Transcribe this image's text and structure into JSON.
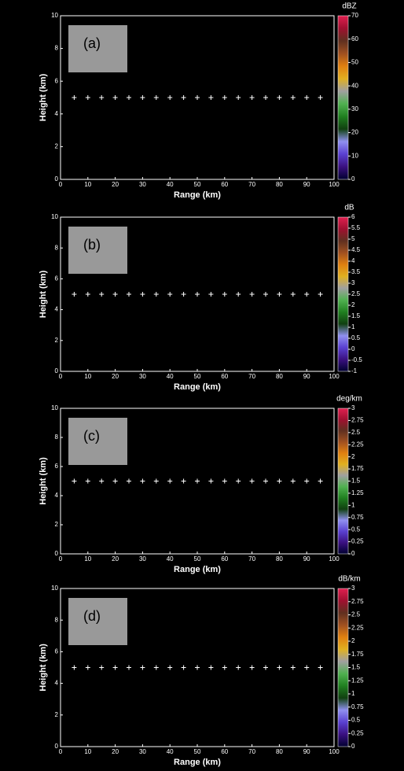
{
  "chart_data": [
    {
      "type": "heatmap",
      "label": "(a)",
      "xlabel": "Range (km)",
      "ylabel": "Height (km)",
      "xlim": [
        0,
        100
      ],
      "xticks": [
        0,
        10,
        20,
        30,
        40,
        50,
        60,
        70,
        80,
        90,
        100
      ],
      "ylim": [
        0,
        10
      ],
      "yticks": [
        0,
        2,
        4,
        6,
        8,
        10
      ],
      "colorbar_label": "dBZ",
      "clim": [
        0,
        70
      ],
      "cticks": [
        0,
        10,
        20,
        30,
        40,
        50,
        60,
        70
      ],
      "reference_height": 5,
      "reference_ranges": [
        5,
        10,
        15,
        20,
        25,
        30,
        35,
        40,
        45,
        50,
        55,
        60,
        65,
        70,
        75,
        80,
        85,
        90,
        95
      ]
    },
    {
      "type": "heatmap",
      "label": "(b)",
      "xlabel": "Range (km)",
      "ylabel": "Height (km)",
      "xlim": [
        0,
        100
      ],
      "xticks": [
        0,
        10,
        20,
        30,
        40,
        50,
        60,
        70,
        80,
        90,
        100
      ],
      "ylim": [
        0,
        10
      ],
      "yticks": [
        0,
        2,
        4,
        6,
        8,
        10
      ],
      "colorbar_label": "dB",
      "clim": [
        -1,
        6
      ],
      "cticks": [
        -1,
        -0.5,
        0,
        0.5,
        1,
        1.5,
        2,
        2.5,
        3,
        3.5,
        4,
        4.5,
        5,
        5.5,
        6
      ],
      "reference_height": 5,
      "reference_ranges": [
        5,
        10,
        15,
        20,
        25,
        30,
        35,
        40,
        45,
        50,
        55,
        60,
        65,
        70,
        75,
        80,
        85,
        90,
        95
      ]
    },
    {
      "type": "heatmap",
      "label": "(c)",
      "xlabel": "Range (km)",
      "ylabel": "Height (km)",
      "xlim": [
        0,
        100
      ],
      "xticks": [
        0,
        10,
        20,
        30,
        40,
        50,
        60,
        70,
        80,
        90,
        100
      ],
      "ylim": [
        0,
        10
      ],
      "yticks": [
        0,
        2,
        4,
        6,
        8,
        10
      ],
      "colorbar_label": "deg/km",
      "clim": [
        0,
        3
      ],
      "cticks": [
        0,
        0.25,
        0.5,
        0.75,
        1,
        1.25,
        1.5,
        1.75,
        2,
        2.25,
        2.5,
        2.75,
        3
      ],
      "reference_height": 5,
      "reference_ranges": [
        5,
        10,
        15,
        20,
        25,
        30,
        35,
        40,
        45,
        50,
        55,
        60,
        65,
        70,
        75,
        80,
        85,
        90,
        95
      ]
    },
    {
      "type": "heatmap",
      "label": "(d)",
      "xlabel": "Range (km)",
      "ylabel": "Height (km)",
      "xlim": [
        0,
        100
      ],
      "xticks": [
        0,
        10,
        20,
        30,
        40,
        50,
        60,
        70,
        80,
        90,
        100
      ],
      "ylim": [
        0,
        10
      ],
      "yticks": [
        0,
        2,
        4,
        6,
        8,
        10
      ],
      "colorbar_label": "dB/km",
      "clim": [
        0,
        3
      ],
      "cticks": [
        0,
        0.25,
        0.5,
        0.75,
        1,
        1.25,
        1.5,
        1.75,
        2,
        2.25,
        2.5,
        2.75,
        3
      ],
      "reference_height": 5,
      "reference_ranges": [
        5,
        10,
        15,
        20,
        25,
        30,
        35,
        40,
        45,
        50,
        55,
        60,
        65,
        70,
        75,
        80,
        85,
        90,
        95
      ]
    }
  ],
  "colormap": [
    "#000030",
    "#3a1080",
    "#5a40d0",
    "#9090f0",
    "#104010",
    "#208020",
    "#50b050",
    "#a0a0a0",
    "#e0b020",
    "#e08010",
    "#a05020",
    "#603020",
    "#a01030",
    "#e02050"
  ]
}
